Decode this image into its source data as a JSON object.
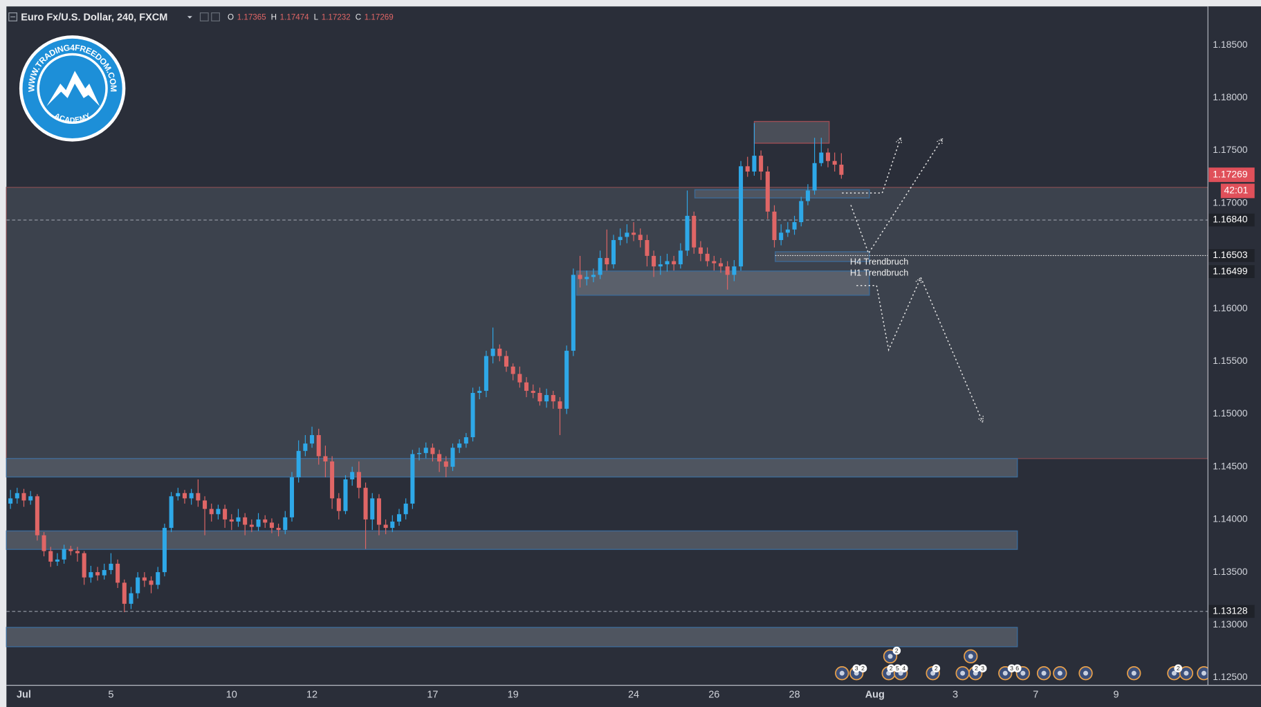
{
  "chart_data": {
    "type": "candlestick",
    "title": "Euro Fx/U.S. Dollar, 240, FXCM",
    "legend": [
      {
        "label": "O",
        "value": 1.17365
      },
      {
        "label": "H",
        "value": 1.17474
      },
      {
        "label": "L",
        "value": 1.17232
      },
      {
        "label": "C",
        "value": 1.17269
      }
    ],
    "up_color": "#2ea8e8",
    "down_color": "#e06666",
    "open": [
      1.1415,
      1.142,
      1.1425,
      1.1418,
      1.1422,
      1.1385,
      1.137,
      1.136,
      1.1362,
      1.1372,
      1.137,
      1.1368,
      1.1345,
      1.135,
      1.1347,
      1.1352,
      1.1358,
      1.134,
      1.132,
      1.133,
      1.1345,
      1.1342,
      1.1338,
      1.135,
      1.1392,
      1.1422,
      1.1425,
      1.142,
      1.1425,
      1.1418,
      1.141,
      1.1405,
      1.141,
      1.14,
      1.1398,
      1.1402,
      1.1395,
      1.1393,
      1.14,
      1.1397,
      1.1392,
      1.139,
      1.1402,
      1.144,
      1.1465,
      1.1472,
      1.148,
      1.146,
      1.1455,
      1.142,
      1.1408,
      1.1438,
      1.1445,
      1.143,
      1.14,
      1.142,
      1.1395,
      1.1392,
      1.1398,
      1.1405,
      1.1415,
      1.1462,
      1.1463,
      1.1468,
      1.1462,
      1.1455,
      1.145,
      1.1468,
      1.1472,
      1.1478,
      1.152,
      1.1522,
      1.1555,
      1.1562,
      1.1555,
      1.1545,
      1.1538,
      1.153,
      1.1522,
      1.152,
      1.1512,
      1.1518,
      1.1512,
      1.1505,
      1.156,
      1.1632,
      1.1628,
      1.163,
      1.1632,
      1.1648,
      1.1642,
      1.1665,
      1.1668,
      1.1672,
      1.167,
      1.1665,
      1.165,
      1.164,
      1.1642,
      1.1645,
      1.1642,
      1.1655,
      1.1688,
      1.1658,
      1.1652,
      1.1645,
      1.1643,
      1.164,
      1.1632,
      1.164,
      1.1735,
      1.173,
      1.1745,
      1.173,
      1.1692,
      1.1665,
      1.1672,
      1.1675,
      1.1682,
      1.1702,
      1.1712,
      1.1738,
      1.1748,
      1.174,
      1.17365
    ],
    "high": [
      1.1428,
      1.143,
      1.1429,
      1.1427,
      1.1424,
      1.1388,
      1.1374,
      1.1368,
      1.1376,
      1.1375,
      1.1374,
      1.137,
      1.1356,
      1.1355,
      1.1358,
      1.1368,
      1.1362,
      1.1343,
      1.1336,
      1.135,
      1.135,
      1.1346,
      1.1355,
      1.1396,
      1.1426,
      1.143,
      1.1428,
      1.1429,
      1.1438,
      1.1422,
      1.1415,
      1.1414,
      1.1414,
      1.1405,
      1.141,
      1.1406,
      1.14,
      1.1406,
      1.1404,
      1.1401,
      1.1396,
      1.1408,
      1.1445,
      1.1475,
      1.148,
      1.1488,
      1.1486,
      1.147,
      1.146,
      1.1425,
      1.1442,
      1.145,
      1.1455,
      1.1435,
      1.1425,
      1.1424,
      1.14,
      1.1404,
      1.141,
      1.142,
      1.1466,
      1.1468,
      1.1473,
      1.1472,
      1.1466,
      1.146,
      1.1472,
      1.1476,
      1.1482,
      1.1525,
      1.1526,
      1.156,
      1.1582,
      1.1566,
      1.156,
      1.1548,
      1.1545,
      1.1535,
      1.1528,
      1.1525,
      1.1524,
      1.1522,
      1.1516,
      1.1565,
      1.1638,
      1.165,
      1.1636,
      1.1638,
      1.1655,
      1.1675,
      1.167,
      1.1676,
      1.168,
      1.1682,
      1.1676,
      1.167,
      1.1655,
      1.165,
      1.1652,
      1.165,
      1.1662,
      1.1712,
      1.1692,
      1.1664,
      1.1658,
      1.165,
      1.1648,
      1.1645,
      1.1646,
      1.174,
      1.1744,
      1.1776,
      1.175,
      1.1735,
      1.1698,
      1.168,
      1.1682,
      1.1688,
      1.1706,
      1.1718,
      1.1762,
      1.1762,
      1.1752,
      1.1748,
      1.17474
    ],
    "low": [
      1.141,
      1.1415,
      1.1412,
      1.1414,
      1.138,
      1.1365,
      1.1355,
      1.1356,
      1.1358,
      1.1366,
      1.136,
      1.1338,
      1.134,
      1.1342,
      1.1343,
      1.1348,
      1.1335,
      1.1312,
      1.1315,
      1.1325,
      1.1336,
      1.133,
      1.1334,
      1.1346,
      1.1388,
      1.1418,
      1.1415,
      1.1414,
      1.1412,
      1.1385,
      1.1398,
      1.14,
      1.1392,
      1.139,
      1.1393,
      1.1385,
      1.1388,
      1.1389,
      1.1392,
      1.1387,
      1.1384,
      1.1386,
      1.1398,
      1.1435,
      1.146,
      1.1468,
      1.1452,
      1.144,
      1.141,
      1.14,
      1.1405,
      1.1432,
      1.142,
      1.1372,
      1.139,
      1.1385,
      1.1386,
      1.1388,
      1.1394,
      1.14,
      1.141,
      1.1456,
      1.1458,
      1.1455,
      1.1445,
      1.144,
      1.1446,
      1.1463,
      1.1468,
      1.1474,
      1.1514,
      1.1516,
      1.1548,
      1.155,
      1.154,
      1.1532,
      1.1525,
      1.1516,
      1.1515,
      1.1508,
      1.1506,
      1.1505,
      1.148,
      1.15,
      1.1555,
      1.162,
      1.1622,
      1.1625,
      1.1628,
      1.1636,
      1.1638,
      1.166,
      1.1662,
      1.1664,
      1.1658,
      1.164,
      1.163,
      1.1632,
      1.1635,
      1.1636,
      1.1638,
      1.165,
      1.1652,
      1.1645,
      1.164,
      1.1636,
      1.1634,
      1.1618,
      1.1626,
      1.1636,
      1.1725,
      1.1726,
      1.1722,
      1.1685,
      1.1658,
      1.166,
      1.1668,
      1.167,
      1.1678,
      1.1698,
      1.1708,
      1.1735,
      1.1734,
      1.173,
      1.17232
    ],
    "close": [
      1.142,
      1.1425,
      1.1418,
      1.1422,
      1.1385,
      1.137,
      1.136,
      1.1362,
      1.1372,
      1.137,
      1.1368,
      1.1345,
      1.135,
      1.1347,
      1.1352,
      1.1358,
      1.134,
      1.132,
      1.133,
      1.1345,
      1.1342,
      1.1338,
      1.135,
      1.1392,
      1.1422,
      1.1425,
      1.142,
      1.1425,
      1.1418,
      1.141,
      1.1405,
      1.141,
      1.14,
      1.1398,
      1.1402,
      1.1395,
      1.1393,
      1.14,
      1.1397,
      1.1392,
      1.139,
      1.1402,
      1.144,
      1.1465,
      1.1472,
      1.148,
      1.146,
      1.1455,
      1.142,
      1.1408,
      1.1438,
      1.1445,
      1.143,
      1.14,
      1.142,
      1.1395,
      1.1392,
      1.1398,
      1.1405,
      1.1415,
      1.1462,
      1.1463,
      1.1468,
      1.1462,
      1.1455,
      1.145,
      1.1468,
      1.1472,
      1.1478,
      1.152,
      1.1522,
      1.1555,
      1.1562,
      1.1555,
      1.1545,
      1.1538,
      1.153,
      1.1522,
      1.152,
      1.1512,
      1.1518,
      1.1512,
      1.1505,
      1.156,
      1.1632,
      1.1628,
      1.163,
      1.1632,
      1.1648,
      1.1642,
      1.1665,
      1.1668,
      1.1672,
      1.167,
      1.1665,
      1.165,
      1.164,
      1.1642,
      1.1645,
      1.1642,
      1.1655,
      1.1688,
      1.1658,
      1.1652,
      1.1645,
      1.1643,
      1.164,
      1.1632,
      1.164,
      1.1735,
      1.173,
      1.1745,
      1.173,
      1.1692,
      1.1665,
      1.1672,
      1.1675,
      1.1682,
      1.1702,
      1.1712,
      1.1738,
      1.1748,
      1.174,
      1.17365,
      1.17269
    ],
    "xlim": [
      -0.6,
      178.7
    ],
    "xticks": [
      {
        "value": 2,
        "label": "Jul"
      },
      {
        "value": 15,
        "label": "5"
      },
      {
        "value": 33,
        "label": "10"
      },
      {
        "value": 45,
        "label": "12"
      },
      {
        "value": 63,
        "label": "17"
      },
      {
        "value": 75,
        "label": "19"
      },
      {
        "value": 93,
        "label": "24"
      },
      {
        "value": 105,
        "label": "26"
      },
      {
        "value": 117,
        "label": "28"
      },
      {
        "value": 129,
        "label": "Aug"
      },
      {
        "value": 141,
        "label": "3"
      },
      {
        "value": 153,
        "label": "7"
      },
      {
        "value": 165,
        "label": "9"
      }
    ],
    "ylim": [
      1.12427,
      1.18866
    ],
    "yticks": [
      {
        "value": 1.125,
        "label": "1.12500"
      },
      {
        "value": 1.13,
        "label": "1.13000"
      },
      {
        "value": 1.135,
        "label": "1.13500"
      },
      {
        "value": 1.14,
        "label": "1.14000"
      },
      {
        "value": 1.145,
        "label": "1.14500"
      },
      {
        "value": 1.15,
        "label": "1.15000"
      },
      {
        "value": 1.155,
        "label": "1.15500"
      },
      {
        "value": 1.16,
        "label": "1.16000"
      },
      {
        "value": 1.165,
        "label": "1.16500"
      },
      {
        "value": 1.17,
        "label": "1.17000"
      },
      {
        "value": 1.175,
        "label": "1.17500"
      },
      {
        "value": 1.18,
        "label": "1.18000"
      },
      {
        "value": 1.185,
        "label": "1.18500"
      }
    ],
    "grid": false,
    "current_price": {
      "value": 1.17269,
      "label": "1.17269",
      "color": "#e0505a"
    },
    "countdown": "42:01",
    "price_lines": [
      {
        "value": 1.1684,
        "label": "1.16840",
        "line": "dashed"
      },
      {
        "value": 1.16503,
        "label": "1.16503",
        "line": "dotted"
      },
      {
        "value": 1.16499,
        "label": "1.16499",
        "line": "none"
      },
      {
        "value": 1.13128,
        "label": "1.13128",
        "line": "dashed"
      }
    ],
    "zones": [
      {
        "low": 1.14578,
        "high": 1.1715,
        "fill": "#3c424d",
        "border": "#7a4a50"
      },
      {
        "low": 1.14403,
        "high": 1.14578,
        "fill": "#4f5560",
        "border": "#3d6a96"
      },
      {
        "low": 1.13716,
        "high": 1.13891,
        "fill": "#4f5560",
        "border": "#3d6a96"
      },
      {
        "low": 1.12793,
        "high": 1.12976,
        "fill": "#4f5560",
        "border": "#3d6a96"
      },
      {
        "low": 1.17569,
        "high": 1.17775,
        "fill": "#4a4e58",
        "border": "#9c4d54"
      },
      {
        "low": 1.1705,
        "high": 1.17127,
        "fill": "#4f5560",
        "border": "#3d6a96"
      },
      {
        "low": 1.16447,
        "high": 1.16539,
        "fill": "#4f5560",
        "border": "#3d6a96"
      },
      {
        "low": 1.16127,
        "high": 1.16356,
        "fill": "#5a606b",
        "border": "#3d6a96"
      }
    ],
    "annotations": [
      "H4 Trendbruch",
      "H1 Trendbruch"
    ],
    "logo": {
      "url": "WWW.TRADING4FREEDOM.COM",
      "tagline": "ACADEMY"
    },
    "event_badges": [
      "3",
      "2",
      "2",
      "5",
      "4",
      "2",
      "2",
      "2",
      "3",
      "3",
      "6",
      "2"
    ]
  }
}
